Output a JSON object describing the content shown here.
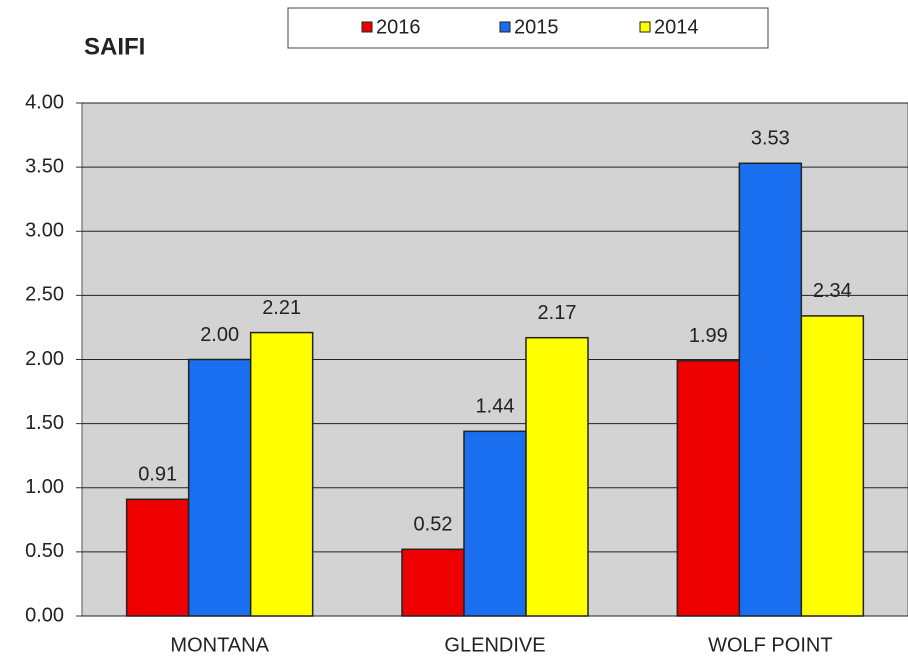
{
  "chart_data": {
    "type": "bar",
    "title": "SAIFI",
    "categories": [
      "MONTANA",
      "GLENDIVE",
      "WOLF POINT"
    ],
    "series": [
      {
        "name": "2016",
        "color": "#ee0000",
        "values": [
          0.91,
          0.52,
          1.99
        ],
        "value_labels": [
          "0.91",
          "0.52",
          "1.99"
        ]
      },
      {
        "name": "2015",
        "color": "#1a6ff0",
        "values": [
          2.0,
          1.44,
          3.53
        ],
        "value_labels": [
          "2.00",
          "1.44",
          "3.53"
        ]
      },
      {
        "name": "2014",
        "color": "#ffff00",
        "values": [
          2.21,
          2.17,
          2.34
        ],
        "value_labels": [
          "2.21",
          "2.17",
          "2.34"
        ]
      }
    ],
    "ylim": [
      0,
      4
    ],
    "yticks": [
      {
        "value": 0,
        "label": "0.00"
      },
      {
        "value": 0.5,
        "label": "0.50"
      },
      {
        "value": 1,
        "label": "1.00"
      },
      {
        "value": 1.5,
        "label": "1.50"
      },
      {
        "value": 2,
        "label": "2.00"
      },
      {
        "value": 2.5,
        "label": "2.50"
      },
      {
        "value": 3,
        "label": "3.00"
      },
      {
        "value": 3.5,
        "label": "3.50"
      },
      {
        "value": 4,
        "label": "4.00"
      }
    ],
    "grid": true
  }
}
